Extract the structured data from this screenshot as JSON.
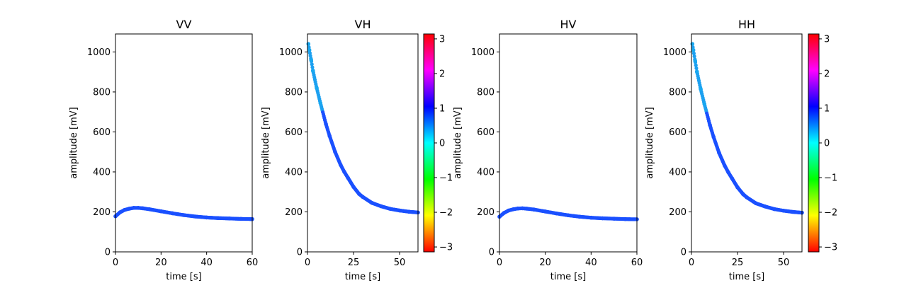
{
  "chart_data": [
    {
      "type": "scatter",
      "title": "VV",
      "xlabel": "time [s]",
      "ylabel": "amplitude [mV]",
      "xlim": [
        0,
        60
      ],
      "ylim": [
        0,
        1090
      ],
      "xticks": [
        0,
        20,
        40,
        60
      ],
      "yticks": [
        0,
        200,
        400,
        600,
        800,
        1000
      ],
      "colorbar": false,
      "color_phase": 0.85,
      "series": [
        {
          "x": [
            0,
            2,
            4,
            6,
            8,
            10,
            12,
            15,
            20,
            25,
            30,
            35,
            40,
            45,
            50,
            55,
            60
          ],
          "y": [
            178,
            198,
            210,
            216,
            220,
            220,
            218,
            213,
            203,
            193,
            184,
            177,
            172,
            169,
            167,
            165,
            164
          ]
        }
      ]
    },
    {
      "type": "scatter",
      "title": "VH",
      "xlabel": "time [s]",
      "ylabel": "amplitude [mV]",
      "xlim": [
        0,
        60
      ],
      "ylim": [
        0,
        1090
      ],
      "xticks": [
        0,
        25,
        50
      ],
      "yticks": [
        0,
        200,
        400,
        600,
        800,
        1000
      ],
      "colorbar": true,
      "color_phase": 0.85,
      "series": [
        {
          "x": [
            0.5,
            1,
            2,
            3,
            5,
            7,
            10,
            12,
            15,
            18,
            20,
            22,
            25,
            28,
            30,
            35,
            40,
            45,
            50,
            55,
            60
          ],
          "y": [
            1040,
            1010,
            960,
            905,
            820,
            745,
            640,
            580,
            500,
            435,
            400,
            370,
            325,
            290,
            275,
            245,
            228,
            215,
            207,
            201,
            197
          ]
        }
      ]
    },
    {
      "type": "scatter",
      "title": "HV",
      "xlabel": "time [s]",
      "ylabel": "amplitude [mV]",
      "xlim": [
        0,
        60
      ],
      "ylim": [
        0,
        1090
      ],
      "xticks": [
        0,
        20,
        40,
        60
      ],
      "yticks": [
        0,
        200,
        400,
        600,
        800,
        1000
      ],
      "colorbar": false,
      "color_phase": 0.85,
      "series": [
        {
          "x": [
            0,
            2,
            4,
            6,
            8,
            10,
            12,
            15,
            20,
            25,
            30,
            35,
            40,
            45,
            50,
            55,
            60
          ],
          "y": [
            176,
            195,
            207,
            213,
            217,
            218,
            216,
            212,
            202,
            192,
            183,
            176,
            171,
            168,
            166,
            164,
            163
          ]
        }
      ]
    },
    {
      "type": "scatter",
      "title": "HH",
      "xlabel": "time [s]",
      "ylabel": "amplitude [mV]",
      "xlim": [
        0,
        60
      ],
      "ylim": [
        0,
        1090
      ],
      "xticks": [
        0,
        25,
        50
      ],
      "yticks": [
        0,
        200,
        400,
        600,
        800,
        1000
      ],
      "colorbar": true,
      "color_phase": 0.85,
      "series": [
        {
          "x": [
            0.5,
            1,
            2,
            3,
            5,
            7,
            10,
            12,
            15,
            18,
            20,
            22,
            25,
            28,
            30,
            35,
            40,
            45,
            50,
            55,
            60
          ],
          "y": [
            1040,
            1010,
            955,
            900,
            815,
            740,
            635,
            575,
            495,
            432,
            398,
            368,
            323,
            289,
            273,
            243,
            227,
            214,
            206,
            200,
            196
          ]
        }
      ]
    }
  ],
  "colorbar": {
    "ticks": [
      -3,
      -2,
      -1,
      0,
      1,
      2,
      3
    ],
    "tick_labels": [
      "−3",
      "−2",
      "−1",
      "0",
      "1",
      "2",
      "3"
    ],
    "range": [
      -3.14159,
      3.14159
    ],
    "colormap": "hsv"
  }
}
